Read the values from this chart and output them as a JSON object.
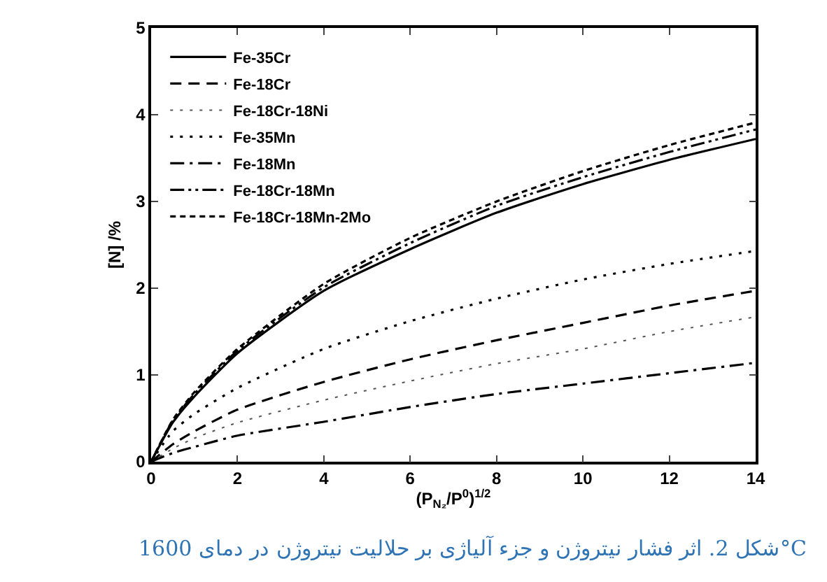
{
  "chart_data": {
    "type": "line",
    "xlabel": "(P$_{N₂}$/P$^{0}$)$^{1/2}$",
    "ylabel": "[N] /%",
    "x": [
      0,
      0.5,
      1,
      2,
      4,
      6,
      8,
      10,
      12,
      14
    ],
    "xlim": [
      0,
      14
    ],
    "xticks": [
      0,
      2,
      4,
      6,
      8,
      10,
      12,
      14
    ],
    "ylim": [
      0,
      5
    ],
    "yticks": [
      0,
      1,
      2,
      3,
      4,
      5
    ],
    "grid": false,
    "legend": "top left",
    "marker": "none",
    "series": [
      {
        "name": "Fe-35Cr",
        "color": "#000000",
        "line_style": "solid",
        "values": [
          0,
          0.45,
          0.75,
          1.25,
          1.97,
          2.45,
          2.87,
          3.2,
          3.48,
          3.72
        ]
      },
      {
        "name": "Fe-18Cr",
        "color": "#000000",
        "line_style": "dashed",
        "values": [
          0,
          0.2,
          0.35,
          0.6,
          0.92,
          1.18,
          1.4,
          1.6,
          1.8,
          1.97
        ]
      },
      {
        "name": "Fe-18Cr-18Ni",
        "color": "#555555",
        "line_style": "dotted",
        "values": [
          0,
          0.15,
          0.27,
          0.45,
          0.71,
          0.93,
          1.13,
          1.3,
          1.5,
          1.67
        ]
      },
      {
        "name": "Fe-35Mn",
        "color": "#000000",
        "line_style": "dotted",
        "values": [
          0,
          0.35,
          0.55,
          0.85,
          1.3,
          1.62,
          1.88,
          2.1,
          2.28,
          2.43
        ]
      },
      {
        "name": "Fe-18Mn",
        "color": "#000000",
        "line_style": "dashdot",
        "values": [
          0,
          0.1,
          0.17,
          0.3,
          0.46,
          0.63,
          0.78,
          0.9,
          1.02,
          1.14
        ]
      },
      {
        "name": "Fe-18Cr-18Mn",
        "color": "#000000",
        "line_style": "dashdotdot",
        "values": [
          0,
          0.47,
          0.78,
          1.28,
          2.01,
          2.52,
          2.95,
          3.28,
          3.57,
          3.83
        ]
      },
      {
        "name": "Fe-18Cr-18Mn-2Mo",
        "color": "#000000",
        "line_style": "dashed-short",
        "values": [
          0,
          0.48,
          0.8,
          1.3,
          2.05,
          2.58,
          3.0,
          3.35,
          3.65,
          3.91
        ]
      }
    ],
    "annotations": [
      "شکل 2. اثر فشار نیتروژن و جزء آلیاژی بر حلالیت نیتروژن در دمای 1600°C"
    ]
  }
}
